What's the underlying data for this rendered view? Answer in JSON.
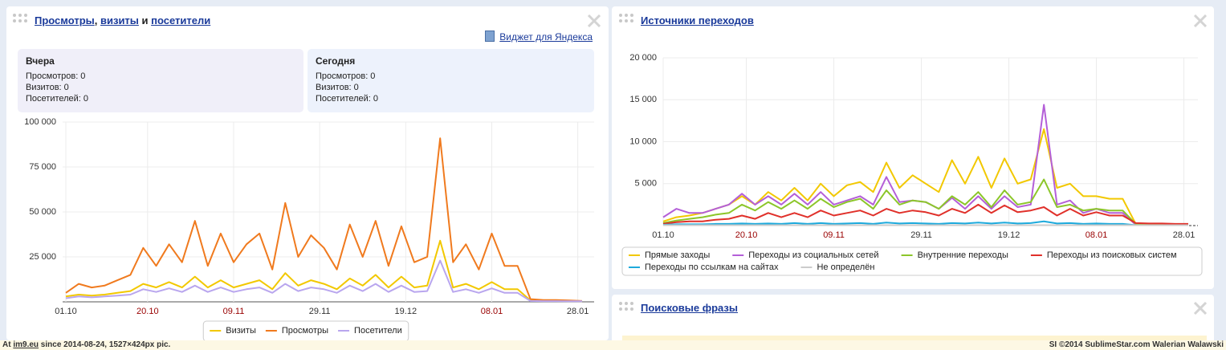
{
  "widgets": [
    {
      "title_parts": [
        "Просмотры",
        ", ",
        "визиты",
        " и ",
        "посетители"
      ],
      "link": "Виджет для Яндекса",
      "summary": [
        {
          "heading": "Вчера",
          "lines": [
            "Просмотров: 0",
            "Визитов: 0",
            "Посетителей: 0"
          ]
        },
        {
          "heading": "Сегодня",
          "lines": [
            "Просмотров: 0",
            "Визитов: 0",
            "Посетителей: 0"
          ]
        }
      ]
    },
    {
      "title": "Источники переходов"
    },
    {
      "title": "Поисковые фразы"
    }
  ],
  "chart_data": [
    {
      "type": "line",
      "x": [
        "01.10",
        "04.10",
        "07.10",
        "10.10",
        "13.10",
        "16.10",
        "19.10",
        "22.10",
        "25.10",
        "28.10",
        "31.10",
        "03.11",
        "06.11",
        "09.11",
        "12.11",
        "15.11",
        "18.11",
        "21.11",
        "24.11",
        "27.11",
        "30.11",
        "03.12",
        "06.12",
        "09.12",
        "12.12",
        "15.12",
        "18.12",
        "21.12",
        "24.12",
        "27.12",
        "30.12",
        "02.01",
        "05.01",
        "08.01",
        "11.01",
        "14.01",
        "17.01",
        "20.01",
        "23.01",
        "26.01",
        "29.01"
      ],
      "xticks": [
        "01.10",
        "20.10",
        "09.11",
        "29.11",
        "19.12",
        "08.01",
        "28.01"
      ],
      "xtick_colors": [
        "#333333",
        "#990000",
        "#990000",
        "#333333",
        "#333333",
        "#990000",
        "#333333"
      ],
      "ylim": [
        0,
        100000
      ],
      "yticks": [
        {
          "value": 25000,
          "label": "25 000"
        },
        {
          "value": 50000,
          "label": "50 000"
        },
        {
          "value": 75000,
          "label": "75 000"
        },
        {
          "value": 100000,
          "label": "100 000"
        }
      ],
      "grid": true,
      "legend": "bottom",
      "series": [
        {
          "name": "Визиты",
          "color": "#f2c800",
          "values": [
            3000,
            4000,
            3500,
            4000,
            5000,
            6000,
            10000,
            8000,
            11000,
            8000,
            14000,
            8000,
            12000,
            8000,
            10000,
            12000,
            7000,
            16000,
            9000,
            12000,
            10000,
            7000,
            13000,
            9000,
            15000,
            8000,
            14000,
            8000,
            9000,
            34000,
            8000,
            10000,
            7000,
            11000,
            7000,
            7000,
            800,
            600,
            600,
            500,
            400
          ]
        },
        {
          "name": "Просмотры",
          "color": "#f07a1e",
          "values": [
            5000,
            10000,
            8000,
            9000,
            12000,
            15000,
            30000,
            20000,
            32000,
            22000,
            45000,
            20000,
            38000,
            22000,
            32000,
            38000,
            18000,
            55000,
            25000,
            37000,
            30000,
            18000,
            43000,
            25000,
            45000,
            20000,
            42000,
            22000,
            25000,
            91000,
            22000,
            32000,
            18000,
            38000,
            20000,
            20000,
            1500,
            1000,
            1000,
            800,
            500
          ]
        },
        {
          "name": "Посетители",
          "color": "#b9a6ee",
          "values": [
            2000,
            3000,
            2500,
            3000,
            3500,
            4000,
            7000,
            5500,
            7500,
            5500,
            9000,
            5500,
            8000,
            5500,
            7000,
            8000,
            5000,
            10000,
            6000,
            8000,
            7000,
            5000,
            9000,
            6000,
            10000,
            5500,
            9000,
            5500,
            6000,
            23000,
            5500,
            7000,
            5000,
            7500,
            5000,
            5000,
            500,
            400,
            400,
            300,
            300
          ]
        }
      ]
    },
    {
      "type": "line",
      "x": [
        "01.10",
        "04.10",
        "07.10",
        "10.10",
        "13.10",
        "16.10",
        "19.10",
        "22.10",
        "25.10",
        "28.10",
        "31.10",
        "03.11",
        "06.11",
        "09.11",
        "12.11",
        "15.11",
        "18.11",
        "21.11",
        "24.11",
        "27.11",
        "30.11",
        "03.12",
        "06.12",
        "09.12",
        "12.12",
        "15.12",
        "18.12",
        "21.12",
        "24.12",
        "27.12",
        "30.12",
        "02.01",
        "05.01",
        "08.01",
        "11.01",
        "14.01",
        "17.01",
        "20.01",
        "23.01",
        "26.01",
        "29.01"
      ],
      "xticks": [
        "01.10",
        "20.10",
        "09.11",
        "29.11",
        "19.12",
        "08.01",
        "28.01"
      ],
      "xtick_colors": [
        "#333333",
        "#990000",
        "#990000",
        "#333333",
        "#333333",
        "#990000",
        "#333333"
      ],
      "ylim": [
        0,
        20000
      ],
      "yticks": [
        {
          "value": 5000,
          "label": "5 000"
        },
        {
          "value": 10000,
          "label": "10 000"
        },
        {
          "value": 15000,
          "label": "15 000"
        },
        {
          "value": 20000,
          "label": "20 000"
        }
      ],
      "grid": true,
      "legend": "bottom",
      "series": [
        {
          "name": "Прямые заходы",
          "color": "#f2c800",
          "values": [
            500,
            1000,
            1200,
            1500,
            2000,
            2500,
            3500,
            2500,
            4000,
            3000,
            4500,
            3000,
            5000,
            3500,
            4800,
            5200,
            4000,
            7500,
            4500,
            6000,
            5000,
            4000,
            7800,
            5000,
            8200,
            4500,
            8000,
            5000,
            5500,
            11500,
            4500,
            5000,
            3500,
            3500,
            3200,
            3200,
            200,
            150,
            150,
            100,
            100
          ]
        },
        {
          "name": "Переходы из социальных сетей",
          "color": "#b45fd8",
          "values": [
            1000,
            2000,
            1500,
            1500,
            2000,
            2500,
            3800,
            2500,
            3500,
            2500,
            3800,
            2500,
            4000,
            2500,
            3000,
            3500,
            2500,
            5800,
            2800,
            3000,
            2800,
            2000,
            3300,
            2000,
            3500,
            2000,
            3500,
            2200,
            2500,
            14400,
            2500,
            3000,
            1500,
            2000,
            1500,
            1500,
            100,
            100,
            100,
            50,
            50
          ]
        },
        {
          "name": "Внутренние переходы",
          "color": "#8cc62a",
          "values": [
            300,
            600,
            800,
            1000,
            1300,
            1500,
            2500,
            1800,
            2800,
            2000,
            3000,
            2000,
            3200,
            2200,
            2800,
            3200,
            2000,
            4200,
            2500,
            3000,
            2800,
            2000,
            3500,
            2500,
            4000,
            2200,
            4200,
            2500,
            2800,
            5500,
            2200,
            2500,
            1800,
            2000,
            1800,
            1800,
            200,
            150,
            150,
            100,
            100
          ]
        },
        {
          "name": "Переходы из поисковых систем",
          "color": "#e0302a",
          "values": [
            200,
            400,
            500,
            500,
            700,
            800,
            1200,
            800,
            1500,
            1000,
            1500,
            1000,
            1800,
            1200,
            1500,
            1800,
            1200,
            2000,
            1500,
            1800,
            1600,
            1200,
            2000,
            1500,
            2500,
            1500,
            2400,
            1600,
            1800,
            2200,
            1200,
            2000,
            1200,
            1600,
            1200,
            1200,
            300,
            250,
            250,
            200,
            200
          ]
        },
        {
          "name": "Переходы по ссылкам на сайтах",
          "color": "#1eaadc",
          "values": [
            100,
            150,
            150,
            150,
            200,
            200,
            250,
            200,
            250,
            200,
            300,
            200,
            300,
            200,
            250,
            300,
            200,
            350,
            250,
            300,
            250,
            200,
            300,
            250,
            350,
            250,
            350,
            250,
            300,
            500,
            250,
            300,
            200,
            250,
            200,
            200,
            50,
            50,
            50,
            50,
            50
          ]
        },
        {
          "name": "Не определён",
          "color": "#cccccc",
          "values": [
            50,
            50,
            50,
            50,
            50,
            50,
            50,
            50,
            50,
            50,
            50,
            50,
            50,
            50,
            50,
            50,
            50,
            50,
            50,
            50,
            50,
            50,
            50,
            50,
            50,
            50,
            50,
            50,
            50,
            50,
            50,
            50,
            50,
            50,
            50,
            50,
            50,
            50,
            50,
            50,
            50
          ]
        }
      ]
    }
  ],
  "footer": {
    "left": [
      "At ",
      "im9.eu",
      " since 2014-08-24, 1527×424px pic."
    ],
    "right": "SI ©2014 SublimeStar.com Walerian Walawski"
  }
}
